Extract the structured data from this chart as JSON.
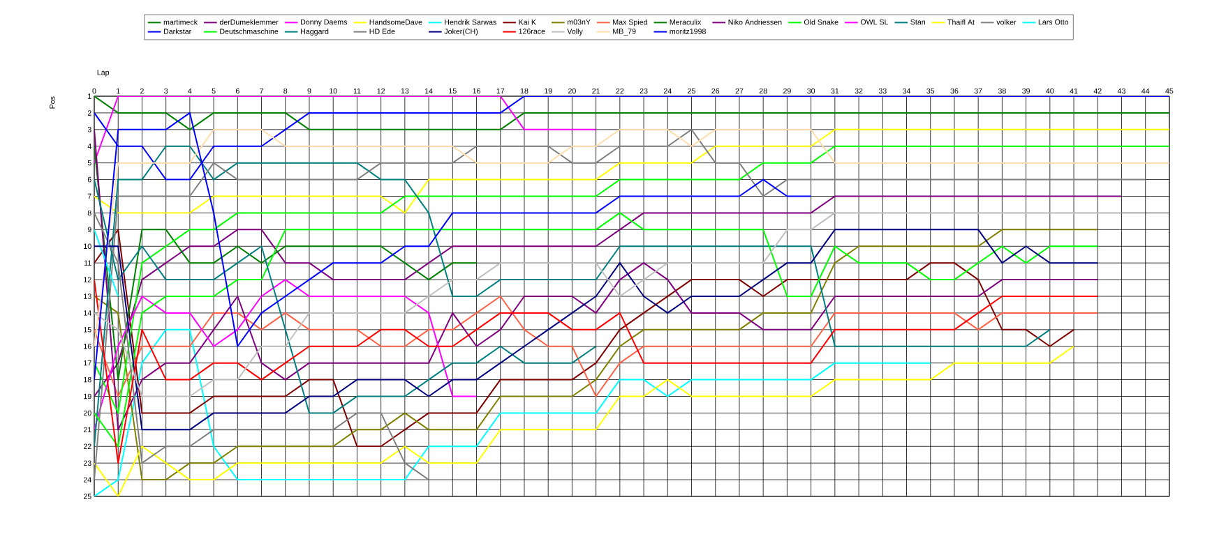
{
  "chart_data": {
    "type": "line",
    "xlabel": "Lap",
    "ylabel": "Pos",
    "x": [
      0,
      1,
      2,
      3,
      4,
      5,
      6,
      7,
      8,
      9,
      10,
      11,
      12,
      13,
      14,
      15,
      16,
      17,
      18,
      19,
      20,
      21,
      22,
      23,
      24,
      25,
      26,
      27,
      28,
      29,
      30,
      31,
      32,
      33,
      34,
      35,
      36,
      37,
      38,
      39,
      40,
      41,
      42,
      43,
      44,
      45
    ],
    "xlim": [
      0,
      45
    ],
    "ylim": [
      25,
      1
    ],
    "xticks": [
      0,
      1,
      2,
      3,
      4,
      5,
      6,
      7,
      8,
      9,
      10,
      11,
      12,
      13,
      14,
      15,
      16,
      17,
      18,
      19,
      20,
      21,
      22,
      23,
      24,
      25,
      26,
      27,
      28,
      29,
      30,
      31,
      32,
      33,
      34,
      35,
      36,
      37,
      38,
      39,
      40,
      41,
      42,
      43,
      44,
      45
    ],
    "yticks": [
      1,
      2,
      3,
      4,
      5,
      6,
      7,
      8,
      9,
      10,
      11,
      12,
      13,
      14,
      15,
      16,
      17,
      18,
      19,
      20,
      21,
      22,
      23,
      24,
      25
    ],
    "grid": true,
    "legend": "top",
    "series": [
      {
        "name": "martimeck",
        "color": "#008000",
        "values": [
          1,
          2,
          2,
          2,
          3,
          2,
          2,
          2,
          2,
          3,
          3,
          3,
          3,
          3,
          3,
          3,
          3,
          3,
          2,
          2,
          2,
          2,
          2,
          2,
          2,
          2,
          2,
          2,
          2,
          2,
          2,
          2,
          2,
          2,
          2,
          2,
          2,
          2,
          2,
          2,
          2,
          2,
          2,
          2,
          2,
          2
        ]
      },
      {
        "name": "derDumeklemmer",
        "color": "#800080",
        "values": [
          19,
          17,
          12,
          11,
          10,
          10,
          9,
          9,
          11,
          11,
          12,
          12,
          12,
          12,
          11,
          10,
          10,
          10,
          10,
          10,
          10,
          10,
          9,
          8,
          8,
          8,
          8,
          8,
          8,
          8,
          8,
          7,
          7,
          7,
          7,
          7,
          7,
          7,
          7,
          7,
          7,
          7,
          7,
          7,
          null,
          null
        ]
      },
      {
        "name": "Donny Daems",
        "color": "#ff00ff",
        "values": [
          5,
          1,
          1,
          1,
          1,
          1,
          1,
          1,
          1,
          1,
          1,
          1,
          1,
          1,
          1,
          1,
          1,
          1,
          3,
          3,
          3,
          3,
          null,
          null,
          null,
          null,
          null,
          null,
          null,
          null,
          null,
          null,
          null,
          null,
          null,
          null,
          null,
          null,
          null,
          null,
          null,
          null,
          null,
          null,
          null,
          null
        ]
      },
      {
        "name": "HandsomeDave",
        "color": "#ffff00",
        "values": [
          7,
          8,
          8,
          8,
          8,
          7,
          7,
          7,
          7,
          7,
          7,
          7,
          7,
          8,
          6,
          6,
          6,
          6,
          6,
          6,
          6,
          6,
          5,
          5,
          5,
          5,
          4,
          4,
          4,
          4,
          4,
          3,
          3,
          3,
          3,
          3,
          3,
          3,
          3,
          3,
          3,
          3,
          3,
          3,
          3,
          3
        ]
      },
      {
        "name": "Hendrik Sarwas",
        "color": "#00ffff",
        "values": [
          25,
          24,
          17,
          15,
          15,
          22,
          24,
          24,
          24,
          24,
          24,
          24,
          24,
          24,
          22,
          22,
          22,
          20,
          20,
          20,
          20,
          20,
          18,
          18,
          19,
          18,
          18,
          18,
          18,
          18,
          18,
          17,
          17,
          17,
          17,
          17,
          null,
          null,
          null,
          null,
          null,
          null,
          null,
          null,
          null,
          null
        ]
      },
      {
        "name": "Kai K",
        "color": "#800000",
        "values": [
          11,
          9,
          20,
          20,
          20,
          19,
          19,
          19,
          19,
          18,
          18,
          22,
          22,
          21,
          20,
          20,
          20,
          18,
          18,
          18,
          18,
          17,
          15,
          14,
          13,
          12,
          12,
          12,
          13,
          12,
          12,
          12,
          12,
          12,
          12,
          11,
          11,
          12,
          15,
          15,
          16,
          15,
          null,
          null,
          null,
          null
        ]
      },
      {
        "name": "m03nY",
        "color": "#808000",
        "values": [
          13,
          14,
          24,
          24,
          23,
          23,
          22,
          22,
          22,
          22,
          22,
          21,
          21,
          20,
          21,
          21,
          21,
          19,
          19,
          19,
          19,
          18,
          16,
          15,
          15,
          15,
          15,
          15,
          14,
          14,
          14,
          11,
          10,
          10,
          10,
          10,
          10,
          10,
          9,
          9,
          9,
          9,
          9,
          null,
          null,
          null
        ]
      },
      {
        "name": "Max Spied",
        "color": "#ff6347",
        "values": [
          15,
          19,
          16,
          16,
          16,
          14,
          14,
          15,
          14,
          15,
          15,
          15,
          16,
          16,
          15,
          15,
          14,
          13,
          15,
          16,
          16,
          19,
          17,
          16,
          16,
          16,
          16,
          16,
          16,
          16,
          16,
          14,
          14,
          14,
          14,
          14,
          14,
          15,
          14,
          14,
          14,
          14,
          14,
          null,
          null,
          null
        ]
      },
      {
        "name": "Meraculix",
        "color": "#008000",
        "values": [
          4,
          18,
          9,
          9,
          11,
          11,
          10,
          11,
          10,
          10,
          10,
          10,
          10,
          11,
          12,
          11,
          11,
          null,
          null,
          null,
          null,
          null,
          null,
          null,
          null,
          null,
          null,
          null,
          null,
          null,
          null,
          null,
          null,
          null,
          null,
          null,
          null,
          null,
          null,
          null,
          null,
          null,
          null,
          null,
          null,
          null
        ]
      },
      {
        "name": "Niko Andriessen",
        "color": "#800080",
        "values": [
          3,
          21,
          18,
          17,
          17,
          15,
          13,
          17,
          18,
          17,
          17,
          17,
          17,
          17,
          17,
          14,
          16,
          15,
          13,
          13,
          13,
          14,
          12,
          11,
          12,
          14,
          14,
          14,
          15,
          15,
          15,
          13,
          13,
          13,
          13,
          13,
          13,
          13,
          12,
          12,
          12,
          12,
          12,
          null,
          null,
          null
        ]
      },
      {
        "name": "Old Snake",
        "color": "#00ff00",
        "values": [
          17,
          20,
          11,
          10,
          9,
          9,
          8,
          8,
          8,
          8,
          8,
          8,
          8,
          7,
          7,
          7,
          7,
          7,
          7,
          7,
          7,
          7,
          6,
          6,
          6,
          6,
          6,
          6,
          5,
          5,
          5,
          4,
          4,
          4,
          4,
          4,
          4,
          4,
          4,
          4,
          4,
          4,
          4,
          4,
          4,
          4
        ]
      },
      {
        "name": "OWL SL",
        "color": "#ff00ff",
        "values": [
          21,
          16,
          13,
          14,
          14,
          16,
          15,
          13,
          12,
          13,
          13,
          13,
          13,
          13,
          14,
          19,
          19,
          null,
          null,
          null,
          null,
          null,
          null,
          null,
          null,
          null,
          null,
          null,
          null,
          null,
          null,
          null,
          null,
          null,
          null,
          null,
          null,
          null,
          null,
          null,
          null,
          null,
          null,
          null,
          null,
          null
        ]
      },
      {
        "name": "Stan",
        "color": "#008080",
        "values": [
          22,
          6,
          6,
          4,
          4,
          6,
          5,
          5,
          5,
          5,
          5,
          5,
          6,
          6,
          8,
          13,
          13,
          12,
          12,
          12,
          12,
          12,
          10,
          10,
          10,
          10,
          10,
          10,
          10,
          10,
          10,
          16,
          16,
          16,
          16,
          16,
          16,
          16,
          16,
          16,
          15,
          null,
          null,
          null,
          null,
          null
        ]
      },
      {
        "name": "Thaifl At",
        "color": "#ffff00",
        "values": [
          23,
          25,
          22,
          23,
          24,
          24,
          23,
          23,
          23,
          23,
          23,
          23,
          23,
          22,
          23,
          23,
          23,
          21,
          21,
          21,
          21,
          21,
          19,
          19,
          18,
          19,
          19,
          19,
          19,
          19,
          19,
          18,
          18,
          18,
          18,
          18,
          17,
          17,
          17,
          17,
          17,
          16,
          null,
          null,
          null,
          null
        ]
      },
      {
        "name": "volker",
        "color": "#808080",
        "values": [
          24,
          7,
          7,
          7,
          7,
          5,
          6,
          6,
          6,
          6,
          6,
          6,
          5,
          5,
          5,
          5,
          4,
          4,
          4,
          4,
          5,
          5,
          4,
          4,
          4,
          3,
          5,
          5,
          7,
          6,
          6,
          6,
          6,
          6,
          6,
          6,
          6,
          6,
          6,
          6,
          6,
          6,
          6,
          6,
          6,
          null
        ]
      },
      {
        "name": "Lars Otto",
        "color": "#00ffff",
        "values": [
          9,
          13,
          null,
          null,
          null,
          null,
          null,
          null,
          null,
          null,
          null,
          null,
          null,
          null,
          null,
          null,
          null,
          null,
          null,
          null,
          null,
          null,
          null,
          null,
          null,
          null,
          null,
          null,
          null,
          null,
          null,
          null,
          null,
          null,
          null,
          null,
          null,
          null,
          null,
          null,
          null,
          null,
          null,
          null,
          null,
          null
        ]
      },
      {
        "name": "Darkstar",
        "color": "#0000ff",
        "values": [
          2,
          4,
          4,
          6,
          6,
          4,
          4,
          4,
          3,
          2,
          2,
          2,
          2,
          2,
          2,
          2,
          2,
          2,
          1,
          1,
          1,
          1,
          1,
          1,
          1,
          1,
          1,
          1,
          1,
          1,
          1,
          1,
          1,
          1,
          1,
          1,
          1,
          1,
          1,
          1,
          1,
          1,
          1,
          1,
          1,
          1
        ]
      },
      {
        "name": "Deutschmaschine",
        "color": "#00ff00",
        "values": [
          20,
          22,
          14,
          13,
          13,
          13,
          12,
          12,
          9,
          9,
          9,
          9,
          9,
          9,
          9,
          9,
          9,
          9,
          9,
          9,
          9,
          9,
          8,
          9,
          9,
          9,
          9,
          9,
          9,
          13,
          13,
          10,
          11,
          11,
          11,
          12,
          12,
          11,
          10,
          11,
          10,
          10,
          10,
          null,
          null,
          null
        ]
      },
      {
        "name": "Haggard",
        "color": "#008080",
        "values": [
          6,
          12,
          10,
          12,
          12,
          12,
          11,
          10,
          15,
          20,
          20,
          19,
          19,
          19,
          18,
          17,
          17,
          16,
          17,
          17,
          17,
          16,
          null,
          null,
          null,
          null,
          null,
          null,
          null,
          null,
          null,
          null,
          null,
          null,
          null,
          null,
          null,
          null,
          null,
          null,
          null,
          null,
          null,
          null,
          null,
          null
        ]
      },
      {
        "name": "HD Ede",
        "color": "#808080",
        "values": [
          8,
          11,
          23,
          22,
          22,
          21,
          21,
          21,
          21,
          21,
          21,
          20,
          20,
          23,
          24,
          null,
          null,
          null,
          null,
          null,
          null,
          null,
          null,
          null,
          null,
          null,
          null,
          null,
          null,
          null,
          null,
          null,
          null,
          null,
          null,
          null,
          null,
          null,
          null,
          null,
          null,
          null,
          null,
          null,
          null,
          null
        ]
      },
      {
        "name": "Joker(CH)",
        "color": "#000080",
        "values": [
          10,
          10,
          21,
          21,
          21,
          20,
          20,
          20,
          20,
          19,
          19,
          18,
          18,
          18,
          19,
          18,
          18,
          17,
          16,
          15,
          14,
          13,
          11,
          13,
          14,
          13,
          13,
          13,
          12,
          11,
          11,
          9,
          9,
          9,
          9,
          9,
          9,
          9,
          11,
          10,
          11,
          11,
          11,
          null,
          null,
          null
        ]
      },
      {
        "name": "126race",
        "color": "#ff0000",
        "values": [
          12,
          23,
          15,
          18,
          18,
          17,
          17,
          18,
          17,
          16,
          16,
          16,
          15,
          15,
          16,
          16,
          15,
          14,
          14,
          14,
          15,
          15,
          14,
          17,
          17,
          17,
          17,
          17,
          17,
          17,
          17,
          15,
          15,
          15,
          15,
          15,
          15,
          14,
          13,
          13,
          13,
          13,
          13,
          null,
          null,
          null
        ]
      },
      {
        "name": "Volly",
        "color": "#c0c0c0",
        "values": [
          14,
          15,
          19,
          19,
          19,
          18,
          18,
          16,
          16,
          14,
          14,
          14,
          14,
          14,
          13,
          12,
          12,
          11,
          11,
          11,
          11,
          11,
          13,
          12,
          11,
          11,
          11,
          11,
          11,
          9,
          9,
          8,
          8,
          8,
          8,
          8,
          8,
          8,
          8,
          8,
          8,
          8,
          8,
          8,
          null,
          null
        ]
      },
      {
        "name": "MB_79",
        "color": "#ffdead",
        "values": [
          16,
          5,
          5,
          5,
          5,
          3,
          3,
          3,
          4,
          4,
          4,
          4,
          4,
          4,
          4,
          4,
          5,
          5,
          5,
          5,
          4,
          4,
          3,
          3,
          3,
          4,
          3,
          3,
          3,
          3,
          3,
          5,
          5,
          5,
          5,
          5,
          5,
          5,
          5,
          5,
          5,
          5,
          5,
          5,
          5,
          5
        ]
      },
      {
        "name": "moritz1998",
        "color": "#0000ff",
        "values": [
          18,
          3,
          3,
          3,
          2,
          8,
          16,
          14,
          13,
          12,
          11,
          11,
          11,
          10,
          10,
          8,
          8,
          8,
          8,
          8,
          8,
          8,
          7,
          7,
          7,
          7,
          7,
          7,
          6,
          7,
          7,
          null,
          null,
          null,
          null,
          null,
          null,
          null,
          null,
          null,
          null,
          null,
          null,
          null,
          null,
          null
        ]
      }
    ]
  }
}
